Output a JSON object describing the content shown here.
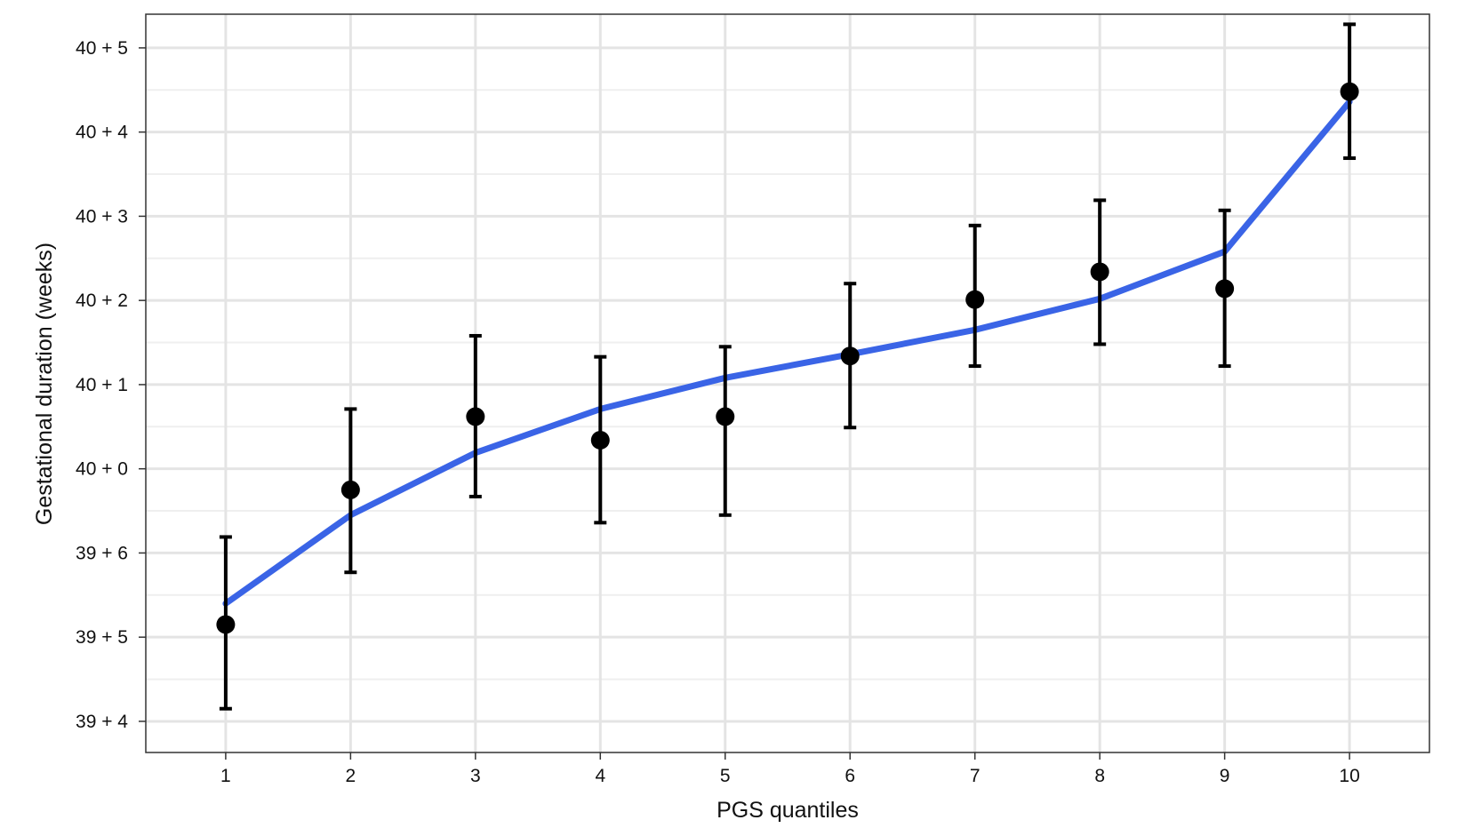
{
  "chart_data": {
    "type": "scatter",
    "xlabel": "PGS quantiles",
    "ylabel": "Gestational duration (weeks)",
    "x_ticks": [
      "1",
      "2",
      "3",
      "4",
      "5",
      "6",
      "7",
      "8",
      "9",
      "10"
    ],
    "y_ticks": [
      "39 + 4",
      "39 + 5",
      "39 + 6",
      "40 + 0",
      "40 + 1",
      "40 + 2",
      "40 + 3",
      "40 + 4",
      "40 + 5"
    ],
    "y_unit": "days from 39 weeks + 4 days",
    "xlim": [
      0.36,
      10.64
    ],
    "ylim": [
      -0.37,
      8.4
    ],
    "grid": true,
    "legend": "none",
    "series": [
      {
        "kind": "points-with-error-bars",
        "x": [
          1,
          2,
          3,
          4,
          5,
          6,
          7,
          8,
          9,
          10
        ],
        "y": [
          1.15,
          2.75,
          3.62,
          3.34,
          3.62,
          4.34,
          5.01,
          5.34,
          5.14,
          7.48
        ],
        "y_low": [
          0.15,
          1.77,
          2.67,
          2.36,
          2.45,
          3.49,
          4.22,
          4.48,
          4.22,
          6.69
        ],
        "y_high": [
          2.19,
          3.71,
          4.58,
          4.33,
          4.45,
          5.2,
          5.89,
          6.19,
          6.07,
          8.28
        ],
        "color": "#000000"
      },
      {
        "kind": "trend-line",
        "x": [
          1,
          2,
          3,
          4,
          5,
          6,
          7,
          8,
          9,
          10
        ],
        "y": [
          1.4,
          2.45,
          3.19,
          3.71,
          4.08,
          4.36,
          4.65,
          5.02,
          5.58,
          7.36
        ],
        "color": "#3a64e6"
      }
    ]
  }
}
